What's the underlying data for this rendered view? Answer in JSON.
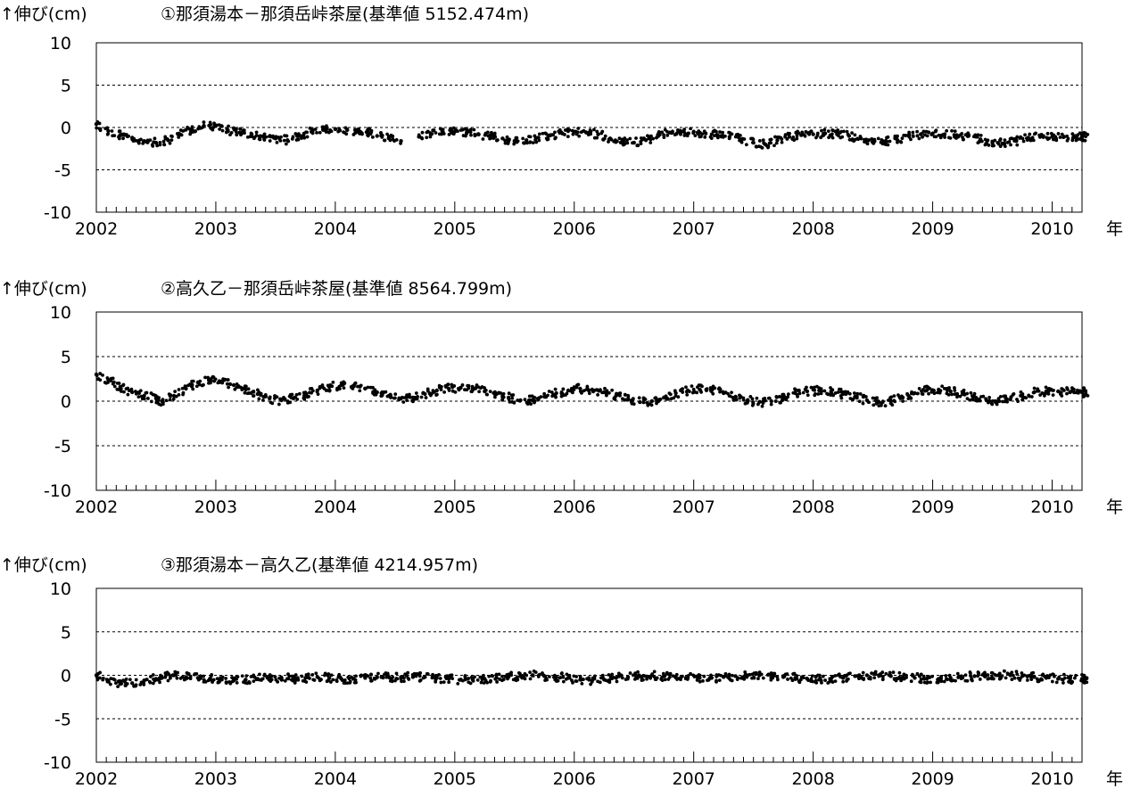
{
  "chart_data": [
    {
      "type": "scatter",
      "title": "①那須湯本－那須岳峠茶屋(基準値  5152.474m)",
      "ylabel": "↑伸び(cm)",
      "xlabel": "年",
      "x_tick_labels": [
        "2002",
        "2003",
        "2004",
        "2005",
        "2006",
        "2007",
        "2008",
        "2009",
        "2010"
      ],
      "y_tick_labels": [
        "10",
        "5",
        "0",
        "-5",
        "-10"
      ],
      "xlim": [
        2002.0,
        2010.25
      ],
      "ylim": [
        -10,
        10
      ],
      "y_grid": [
        5,
        0,
        -5
      ],
      "series": [
        {
          "x": [
            2002.0,
            2002.1,
            2002.2,
            2002.3,
            2002.4,
            2002.5,
            2002.6,
            2002.7,
            2002.8,
            2002.9,
            2003.0,
            2003.1,
            2003.2,
            2003.3,
            2003.4,
            2003.5,
            2003.6,
            2003.7,
            2003.8,
            2003.9,
            2004.0,
            2004.1,
            2004.2,
            2004.27,
            2004.35,
            2004.45,
            2004.55,
            2004.7,
            2004.8,
            2004.9,
            2005.0,
            2005.1,
            2005.2,
            2005.3,
            2005.4,
            2005.5,
            2005.6,
            2005.7,
            2005.8,
            2005.9,
            2006.0,
            2006.1,
            2006.2,
            2006.3,
            2006.4,
            2006.5,
            2006.6,
            2006.7,
            2006.8,
            2006.9,
            2007.0,
            2007.1,
            2007.2,
            2007.3,
            2007.4,
            2007.5,
            2007.6,
            2007.7,
            2007.8,
            2007.9,
            2008.0,
            2008.1,
            2008.2,
            2008.3,
            2008.4,
            2008.5,
            2008.6,
            2008.7,
            2008.8,
            2008.9,
            2009.0,
            2009.1,
            2009.2,
            2009.3,
            2009.4,
            2009.5,
            2009.6,
            2009.7,
            2009.8,
            2009.9,
            2010.0,
            2010.1,
            2010.2,
            2010.25
          ],
          "y": [
            0.4,
            -0.4,
            -0.9,
            -1.2,
            -1.6,
            -1.8,
            -1.5,
            -0.8,
            -0.2,
            0.2,
            0.2,
            -0.3,
            -0.6,
            -0.8,
            -1.0,
            -1.3,
            -1.5,
            -1.0,
            -0.5,
            -0.3,
            -0.2,
            -0.3,
            -0.5,
            -0.5,
            -1.0,
            -1.3,
            -1.6,
            -1.1,
            -0.8,
            -0.5,
            -0.5,
            -0.6,
            -0.8,
            -1.0,
            -1.3,
            -1.6,
            -1.5,
            -1.2,
            -0.9,
            -0.7,
            -0.5,
            -0.6,
            -0.8,
            -1.3,
            -1.7,
            -1.8,
            -1.5,
            -1.0,
            -0.6,
            -0.5,
            -0.5,
            -0.7,
            -0.9,
            -1.1,
            -1.4,
            -1.8,
            -2.0,
            -1.5,
            -1.1,
            -0.9,
            -0.8,
            -0.7,
            -0.8,
            -1.0,
            -1.3,
            -1.6,
            -1.7,
            -1.4,
            -1.0,
            -0.8,
            -0.7,
            -0.8,
            -0.9,
            -1.0,
            -1.4,
            -1.8,
            -1.9,
            -1.6,
            -1.2,
            -1.1,
            -1.1,
            -1.1,
            -1.1,
            -1.1
          ]
        }
      ]
    },
    {
      "type": "scatter",
      "title": "②高久乙－那須岳峠茶屋(基準値  8564.799m)",
      "ylabel": "↑伸び(cm)",
      "xlabel": "年",
      "x_tick_labels": [
        "2002",
        "2003",
        "2004",
        "2005",
        "2006",
        "2007",
        "2008",
        "2009",
        "2010"
      ],
      "y_tick_labels": [
        "10",
        "5",
        "0",
        "-5",
        "-10"
      ],
      "xlim": [
        2002.0,
        2010.25
      ],
      "ylim": [
        -10,
        10
      ],
      "y_grid": [
        5,
        0,
        -5
      ],
      "series": [
        {
          "x": [
            2002.0,
            2002.1,
            2002.2,
            2002.3,
            2002.4,
            2002.5,
            2002.55,
            2002.65,
            2002.75,
            2002.85,
            2002.95,
            2003.05,
            2003.15,
            2003.25,
            2003.35,
            2003.45,
            2003.55,
            2003.65,
            2003.75,
            2003.85,
            2003.95,
            2004.05,
            2004.15,
            2004.25,
            2004.35,
            2004.45,
            2004.55,
            2004.65,
            2004.75,
            2004.85,
            2004.95,
            2005.05,
            2005.15,
            2005.25,
            2005.35,
            2005.45,
            2005.55,
            2005.65,
            2005.75,
            2005.85,
            2005.95,
            2006.05,
            2006.15,
            2006.25,
            2006.35,
            2006.45,
            2006.55,
            2006.65,
            2006.75,
            2006.85,
            2006.95,
            2007.05,
            2007.15,
            2007.25,
            2007.35,
            2007.45,
            2007.55,
            2007.65,
            2007.75,
            2007.85,
            2007.95,
            2008.05,
            2008.15,
            2008.25,
            2008.35,
            2008.45,
            2008.55,
            2008.65,
            2008.75,
            2008.85,
            2008.95,
            2009.05,
            2009.15,
            2009.25,
            2009.35,
            2009.45,
            2009.55,
            2009.65,
            2009.75,
            2009.85,
            2009.95,
            2010.05,
            2010.15,
            2010.25
          ],
          "y": [
            3.0,
            2.4,
            1.6,
            1.0,
            0.6,
            0.3,
            0.0,
            0.6,
            1.4,
            2.1,
            2.4,
            2.2,
            1.8,
            1.3,
            0.8,
            0.3,
            0.1,
            0.3,
            0.7,
            1.2,
            1.6,
            1.8,
            1.7,
            1.4,
            1.0,
            0.6,
            0.3,
            0.4,
            0.8,
            1.2,
            1.4,
            1.5,
            1.4,
            1.1,
            0.8,
            0.4,
            0.1,
            0.1,
            0.5,
            0.9,
            1.2,
            1.4,
            1.3,
            1.0,
            0.6,
            0.2,
            -0.1,
            0.0,
            0.4,
            0.9,
            1.2,
            1.3,
            1.2,
            0.9,
            0.5,
            0.1,
            -0.1,
            0.0,
            0.4,
            0.9,
            1.1,
            1.2,
            1.1,
            0.8,
            0.5,
            0.1,
            -0.1,
            0.0,
            0.4,
            0.9,
            1.2,
            1.3,
            1.1,
            0.8,
            0.5,
            0.1,
            0.0,
            0.2,
            0.6,
            1.0,
            1.1,
            1.1,
            1.0,
            1.0
          ]
        }
      ]
    },
    {
      "type": "scatter",
      "title": "③那須湯本－高久乙(基準値  4214.957m)",
      "ylabel": "↑伸び(cm)",
      "xlabel": "年",
      "x_tick_labels": [
        "2002",
        "2003",
        "2004",
        "2005",
        "2006",
        "2007",
        "2008",
        "2009",
        "2010"
      ],
      "y_tick_labels": [
        "10",
        "5",
        "0",
        "-5",
        "-10"
      ],
      "xlim": [
        2002.0,
        2010.25
      ],
      "ylim": [
        -10,
        10
      ],
      "y_grid": [
        5,
        0,
        -5
      ],
      "series": [
        {
          "x": [
            2002.0,
            2002.1,
            2002.2,
            2002.3,
            2002.4,
            2002.5,
            2002.55,
            2002.65,
            2002.75,
            2002.85,
            2002.95,
            2003.05,
            2003.15,
            2003.25,
            2003.35,
            2003.45,
            2003.55,
            2003.65,
            2003.75,
            2003.85,
            2003.95,
            2004.05,
            2004.15,
            2004.25,
            2004.35,
            2004.45,
            2004.55,
            2004.65,
            2004.75,
            2004.85,
            2004.95,
            2005.05,
            2005.15,
            2005.25,
            2005.35,
            2005.45,
            2005.55,
            2005.65,
            2005.75,
            2005.85,
            2005.95,
            2006.05,
            2006.15,
            2006.25,
            2006.35,
            2006.45,
            2006.55,
            2006.65,
            2006.75,
            2006.85,
            2006.95,
            2007.05,
            2007.15,
            2007.25,
            2007.35,
            2007.45,
            2007.55,
            2007.65,
            2007.75,
            2007.85,
            2007.95,
            2008.05,
            2008.15,
            2008.25,
            2008.35,
            2008.45,
            2008.55,
            2008.65,
            2008.75,
            2008.85,
            2008.95,
            2009.05,
            2009.15,
            2009.25,
            2009.35,
            2009.45,
            2009.55,
            2009.65,
            2009.75,
            2009.85,
            2009.95,
            2010.05,
            2010.15,
            2010.25
          ],
          "y": [
            0.0,
            -0.6,
            -1.0,
            -0.9,
            -0.6,
            -0.4,
            -0.3,
            0.0,
            -0.2,
            -0.3,
            -0.4,
            -0.5,
            -0.6,
            -0.5,
            -0.4,
            -0.3,
            -0.3,
            -0.4,
            -0.3,
            -0.2,
            -0.3,
            -0.4,
            -0.4,
            -0.3,
            -0.2,
            -0.2,
            -0.2,
            -0.2,
            -0.2,
            -0.3,
            -0.4,
            -0.5,
            -0.5,
            -0.4,
            -0.3,
            -0.2,
            -0.1,
            0.0,
            -0.1,
            -0.2,
            -0.3,
            -0.5,
            -0.6,
            -0.5,
            -0.3,
            -0.2,
            -0.1,
            0.0,
            -0.1,
            -0.2,
            -0.3,
            -0.3,
            -0.3,
            -0.2,
            -0.1,
            0.0,
            0.0,
            -0.1,
            -0.2,
            -0.3,
            -0.4,
            -0.5,
            -0.4,
            -0.3,
            -0.1,
            0.0,
            0.0,
            -0.1,
            -0.2,
            -0.3,
            -0.4,
            -0.4,
            -0.3,
            -0.2,
            -0.1,
            0.0,
            0.0,
            0.0,
            -0.1,
            -0.2,
            -0.3,
            -0.4,
            -0.4,
            -0.4
          ]
        }
      ]
    }
  ]
}
